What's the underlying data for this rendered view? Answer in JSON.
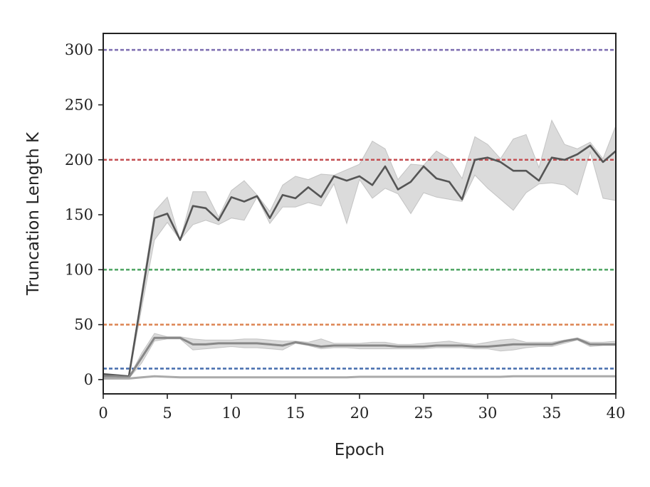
{
  "chart_data": {
    "type": "line",
    "xlabel": "Epoch",
    "ylabel": "Truncation Length K",
    "xlim": [
      0,
      40
    ],
    "ylim": [
      -13,
      315
    ],
    "xticks": [
      0,
      5,
      10,
      15,
      20,
      25,
      30,
      35,
      40
    ],
    "yticks": [
      0,
      50,
      100,
      150,
      200,
      250,
      300
    ],
    "grid": false,
    "legend": "none",
    "reference_lines": [
      {
        "y": 10,
        "color": "#4c72b0"
      },
      {
        "y": 50,
        "color": "#dd8452"
      },
      {
        "y": 100,
        "color": "#55a868"
      },
      {
        "y": 200,
        "color": "#c44e52"
      },
      {
        "y": 300,
        "color": "#8172b3"
      }
    ],
    "series": [
      {
        "color": "#555555",
        "x": [
          0,
          1,
          2,
          3,
          4,
          5,
          6,
          7,
          8,
          9,
          10,
          11,
          12,
          13,
          14,
          15,
          16,
          17,
          18,
          19,
          20,
          21,
          22,
          23,
          24,
          25,
          26,
          27,
          28,
          29,
          30,
          31,
          32,
          33,
          34,
          35,
          36,
          37,
          38,
          39,
          40
        ],
        "y": [
          5,
          4,
          3,
          75,
          147,
          151,
          127,
          158,
          156,
          145,
          166,
          162,
          167,
          147,
          168,
          165,
          175,
          166,
          185,
          181,
          185,
          177,
          194,
          173,
          180,
          194,
          183,
          180,
          164,
          200,
          202,
          198,
          190,
          190,
          181,
          202,
          200,
          205,
          213,
          198,
          208
        ],
        "band_upper": [
          5,
          4,
          3,
          80,
          153,
          166,
          127,
          171,
          171,
          148,
          172,
          181,
          168,
          153,
          177,
          185,
          182,
          187,
          186,
          191,
          196,
          217,
          210,
          182,
          196,
          195,
          208,
          201,
          183,
          221,
          214,
          201,
          219,
          223,
          193,
          236,
          214,
          210,
          216,
          201,
          231
        ],
        "band_lower": [
          3,
          2,
          1,
          65,
          127,
          143,
          127,
          141,
          145,
          141,
          147,
          145,
          166,
          142,
          157,
          157,
          161,
          158,
          178,
          142,
          182,
          165,
          174,
          169,
          151,
          170,
          166,
          164,
          162,
          186,
          174,
          164,
          154,
          170,
          178,
          179,
          177,
          168,
          207,
          165,
          163
        ]
      },
      {
        "color": "#888888",
        "x": [
          0,
          1,
          2,
          3,
          4,
          5,
          6,
          7,
          8,
          9,
          10,
          11,
          12,
          13,
          14,
          15,
          16,
          17,
          18,
          19,
          20,
          21,
          22,
          23,
          24,
          25,
          26,
          27,
          28,
          29,
          30,
          31,
          32,
          33,
          34,
          35,
          36,
          37,
          38,
          39,
          40
        ],
        "y": [
          3,
          3,
          2,
          20,
          38,
          38,
          38,
          32,
          32,
          33,
          33,
          33,
          33,
          32,
          31,
          34,
          32,
          30,
          31,
          31,
          31,
          31,
          31,
          30,
          30,
          30,
          31,
          31,
          31,
          30,
          30,
          31,
          32,
          32,
          32,
          32,
          35,
          37,
          32,
          32,
          32
        ],
        "band_upper": [
          3,
          3,
          2,
          24,
          42,
          39,
          39,
          37,
          36,
          36,
          36,
          37,
          37,
          36,
          35,
          35,
          34,
          37,
          33,
          33,
          33,
          34,
          34,
          32,
          32,
          33,
          34,
          35,
          33,
          32,
          34,
          36,
          37,
          34,
          34,
          34,
          36,
          38,
          34,
          34,
          35
        ],
        "band_lower": [
          1,
          1,
          1,
          15,
          35,
          37,
          37,
          27,
          28,
          29,
          30,
          29,
          29,
          28,
          27,
          33,
          31,
          28,
          29,
          29,
          28,
          28,
          28,
          28,
          28,
          28,
          29,
          29,
          29,
          28,
          28,
          26,
          27,
          29,
          30,
          30,
          33,
          36,
          30,
          31,
          31
        ]
      },
      {
        "color": "#aaaaaa",
        "x": [
          0,
          1,
          2,
          3,
          4,
          5,
          6,
          7,
          8,
          9,
          10,
          11,
          12,
          13,
          14,
          15,
          16,
          17,
          18,
          19,
          20,
          21,
          22,
          23,
          24,
          25,
          26,
          27,
          28,
          29,
          30,
          31,
          32,
          33,
          34,
          35,
          36,
          37,
          38,
          39,
          40
        ],
        "y": [
          1,
          1,
          1,
          2,
          3,
          2.5,
          2,
          2,
          2,
          2,
          2,
          2,
          2,
          2,
          2,
          2,
          2,
          2,
          2,
          2,
          2.5,
          2.5,
          2.5,
          2.5,
          2.5,
          2.5,
          2.5,
          2.5,
          2.5,
          2.5,
          2.5,
          2.5,
          3,
          3,
          3,
          3,
          3,
          3,
          3,
          3,
          3
        ]
      }
    ]
  }
}
